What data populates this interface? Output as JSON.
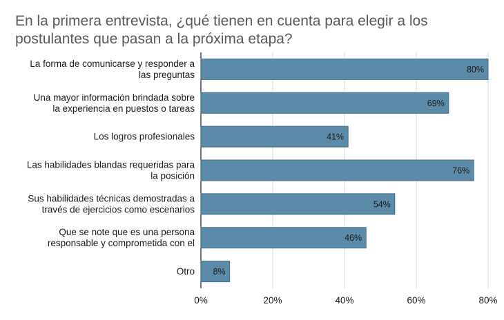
{
  "chart_data": {
    "type": "bar",
    "orientation": "horizontal",
    "title_lines": [
      "En la primera entrevista, ¿qué tienen en cuenta para elegir a los",
      "postulantes que pasan a la próxima etapa?"
    ],
    "categories": [
      [
        "La forma de comunicarse y responder a",
        "las preguntas"
      ],
      [
        "Una mayor información brindada sobre",
        "la experiencia en puestos o tareas"
      ],
      [
        "Los logros profesionales"
      ],
      [
        "Las habilidades blandas requeridas para",
        "la posición"
      ],
      [
        "Sus habilidades técnicas demostradas a",
        "través de ejercicios como escenarios"
      ],
      [
        "Que se note que es una persona",
        "responsable y comprometida con el"
      ],
      [
        "Otro"
      ]
    ],
    "values": [
      80,
      69,
      41,
      76,
      54,
      46,
      8
    ],
    "value_labels": [
      "80%",
      "69%",
      "41%",
      "76%",
      "54%",
      "46%",
      "8%"
    ],
    "xlim": [
      0,
      80
    ],
    "xticks": [
      0,
      20,
      40,
      60,
      80
    ],
    "xtick_labels": [
      "0%",
      "20%",
      "40%",
      "60%",
      "80%"
    ],
    "grid": true,
    "bar_color": "#5b8ba8",
    "bar_stroke": "#3f6f8c",
    "grid_color": "#d9d9d9"
  }
}
